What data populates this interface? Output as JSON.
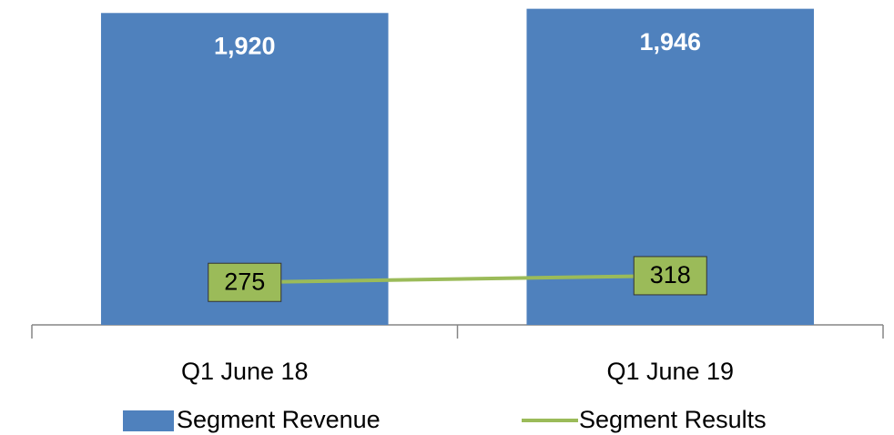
{
  "chart_data": {
    "type": "bar",
    "categories": [
      "Q1 June 18",
      "Q1 June 19"
    ],
    "ylim": [
      0,
      2000
    ],
    "y2lim": [
      0,
      2100
    ],
    "series": [
      {
        "name": "Segment Revenue",
        "type": "bar",
        "color": "#4f81bd",
        "values": [
          1920,
          1946
        ],
        "value_labels": [
          "1,920",
          "1,946"
        ]
      },
      {
        "name": "Segment Results",
        "type": "line",
        "axis": "y2",
        "color": "#9bbb59",
        "values": [
          275,
          318
        ]
      }
    ]
  }
}
